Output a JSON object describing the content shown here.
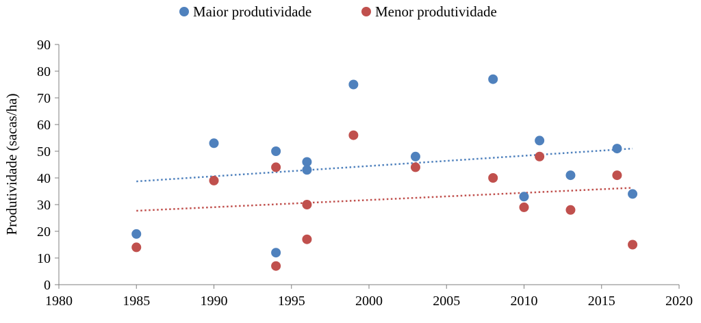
{
  "chart_data": {
    "type": "scatter",
    "title": "",
    "xlabel": "",
    "ylabel": "Produtividade (sacas/ha)",
    "xlim": [
      1980,
      2020
    ],
    "ylim": [
      0,
      90
    ],
    "x_ticks": [
      "1980",
      "1985",
      "1990",
      "1995",
      "2000",
      "2005",
      "2010",
      "2015",
      "2020"
    ],
    "y_ticks": [
      "0",
      "10",
      "20",
      "30",
      "40",
      "50",
      "60",
      "70",
      "80",
      "90"
    ],
    "grid": false,
    "legend_position": "top",
    "series": [
      {
        "name": "Maior produtividade",
        "color": "#4f81bd",
        "marker": "circle",
        "points": [
          {
            "x": 1985,
            "y": 19
          },
          {
            "x": 1990,
            "y": 53
          },
          {
            "x": 1994,
            "y": 50
          },
          {
            "x": 1994,
            "y": 12
          },
          {
            "x": 1996,
            "y": 46
          },
          {
            "x": 1996,
            "y": 43
          },
          {
            "x": 1999,
            "y": 75
          },
          {
            "x": 2003,
            "y": 48
          },
          {
            "x": 2008,
            "y": 77
          },
          {
            "x": 2010,
            "y": 33
          },
          {
            "x": 2011,
            "y": 54
          },
          {
            "x": 2013,
            "y": 41
          },
          {
            "x": 2016,
            "y": 51
          },
          {
            "x": 2017,
            "y": 34
          }
        ],
        "trendline": {
          "type": "linear",
          "style": "dotted",
          "x": [
            1985,
            2017
          ],
          "y": [
            38.7,
            51.0
          ]
        }
      },
      {
        "name": "Menor produtividade",
        "color": "#c0504d",
        "marker": "circle",
        "points": [
          {
            "x": 1985,
            "y": 14
          },
          {
            "x": 1990,
            "y": 39
          },
          {
            "x": 1994,
            "y": 44
          },
          {
            "x": 1994,
            "y": 7
          },
          {
            "x": 1996,
            "y": 30
          },
          {
            "x": 1996,
            "y": 17
          },
          {
            "x": 1999,
            "y": 56
          },
          {
            "x": 2003,
            "y": 44
          },
          {
            "x": 2008,
            "y": 40
          },
          {
            "x": 2010,
            "y": 29
          },
          {
            "x": 2011,
            "y": 48
          },
          {
            "x": 2013,
            "y": 28
          },
          {
            "x": 2016,
            "y": 41
          },
          {
            "x": 2017,
            "y": 15
          }
        ],
        "trendline": {
          "type": "linear",
          "style": "dotted",
          "x": [
            1985,
            2017
          ],
          "y": [
            27.7,
            36.3
          ]
        }
      }
    ]
  }
}
